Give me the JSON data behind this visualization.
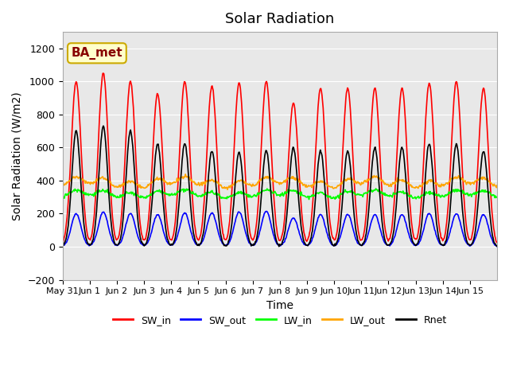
{
  "title": "Solar Radiation",
  "xlabel": "Time",
  "ylabel": "Solar Radiation (W/m2)",
  "ylim": [
    -200,
    1300
  ],
  "yticks": [
    -200,
    0,
    200,
    400,
    600,
    800,
    1000,
    1200
  ],
  "legend_labels": [
    "SW_in",
    "SW_out",
    "LW_in",
    "LW_out",
    "Rnet"
  ],
  "legend_colors": [
    "red",
    "blue",
    "lime",
    "orange",
    "black"
  ],
  "annotation_text": "BA_met",
  "annotation_bg": "#ffffcc",
  "annotation_border": "#ccaa00",
  "annotation_text_color": "#880000",
  "n_days": 16,
  "xtick_labels": [
    "May 31",
    "Jun 1",
    "Jun 2",
    "Jun 3",
    "Jun 4",
    "Jun 5",
    "Jun 6",
    "Jun 7",
    "Jun 8",
    "Jun 9",
    "Jun 10",
    "Jun 11",
    "Jun 12",
    "Jun 13",
    "Jun 14",
    "Jun 15"
  ],
  "sw_in_peaks": [
    1000,
    1050,
    1000,
    925,
    1000,
    975,
    990,
    1000,
    870,
    960,
    960,
    960,
    960,
    990,
    1000,
    960
  ],
  "sw_out_peaks": [
    200,
    210,
    200,
    195,
    205,
    205,
    210,
    215,
    175,
    195,
    195,
    195,
    195,
    200,
    200,
    195
  ],
  "rnet_peaks": [
    700,
    730,
    700,
    620,
    625,
    580,
    570,
    580,
    600,
    580,
    580,
    600,
    600,
    620,
    620,
    580
  ],
  "lw_in_base": 320,
  "lw_out_base": 390,
  "rnet_night": -75
}
